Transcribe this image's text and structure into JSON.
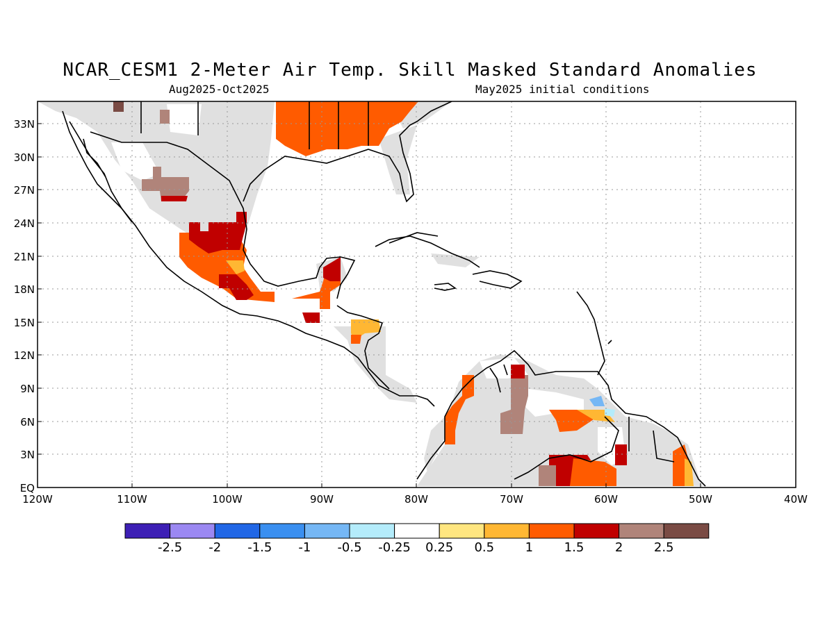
{
  "title": "NCAR_CESM1 2-Meter Air Temp. Skill Masked Standard Anomalies",
  "subtitle_left": "Aug2025-Oct2025",
  "subtitle_right": "May2025 initial conditions",
  "lat_labels": [
    "33N",
    "30N",
    "27N",
    "24N",
    "21N",
    "18N",
    "15N",
    "12N",
    "9N",
    "6N",
    "3N",
    "EQ"
  ],
  "lon_labels": [
    "120W",
    "110W",
    "100W",
    "90W",
    "80W",
    "70W",
    "60W",
    "50W",
    "40W"
  ],
  "colorbar": {
    "colors": [
      "#3d1fb5",
      "#9b88f2",
      "#2167e6",
      "#3a8ff0",
      "#75b7f5",
      "#b4ecfb",
      "#ffffff",
      "#ffe680",
      "#ffb733",
      "#ff5b00",
      "#c00000",
      "#b0847a",
      "#7a4b44"
    ],
    "labels": [
      "-2.5",
      "-2",
      "-1.5",
      "-1",
      "-0.5",
      "-0.25",
      "0.25",
      "0.5",
      "1",
      "1.5",
      "2",
      "2.5"
    ]
  },
  "mask_color": "#e0e0e0"
}
